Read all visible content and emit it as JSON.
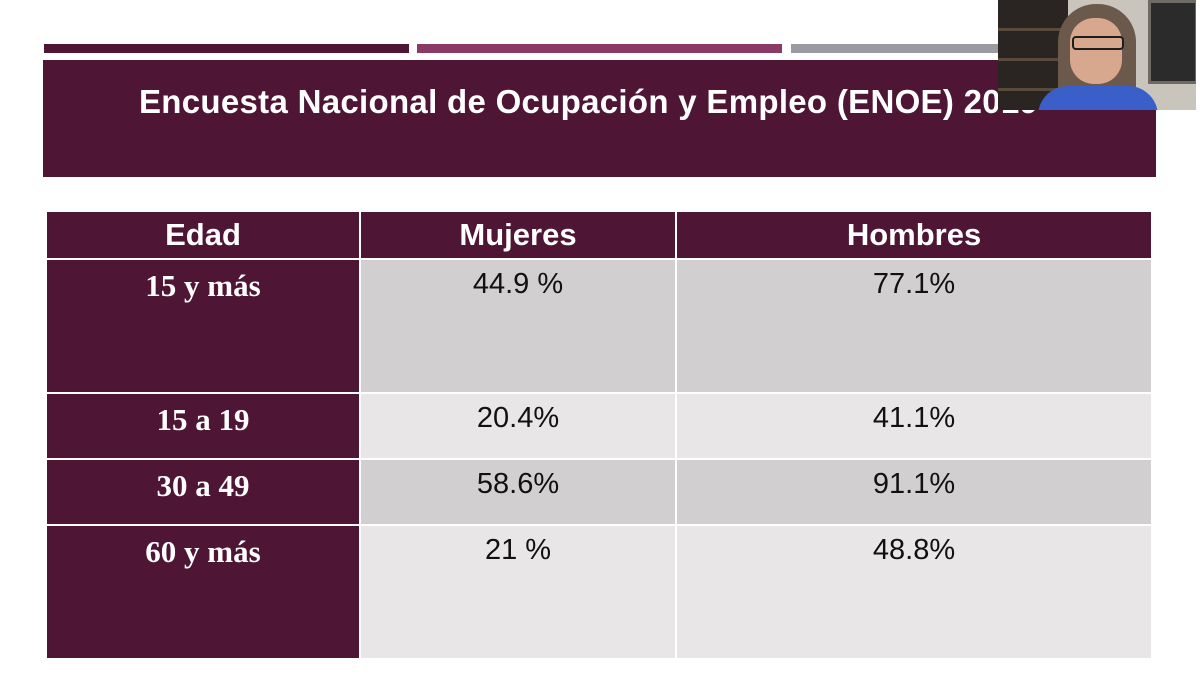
{
  "slide": {
    "title": "Encuesta Nacional de Ocupación y Empleo (ENOE) 2019",
    "colors": {
      "primary": "#4f1534",
      "secondary": "#8b3a68",
      "neutral": "#9a9aa0",
      "row_dark": "#d2cfd0",
      "row_light": "#e8e6e7"
    },
    "table": {
      "headers": [
        "Edad",
        "Mujeres",
        "Hombres"
      ],
      "rows": [
        {
          "edad": "15 y más",
          "mujeres": "44.9 %",
          "hombres": "77.1%"
        },
        {
          "edad": "15 a 19",
          "mujeres": "20.4%",
          "hombres": "41.1%"
        },
        {
          "edad": "30 a 49",
          "mujeres": "58.6%",
          "hombres": "91.1%"
        },
        {
          "edad": "60 y más",
          "mujeres": "21 %",
          "hombres": "48.8%"
        }
      ]
    }
  }
}
